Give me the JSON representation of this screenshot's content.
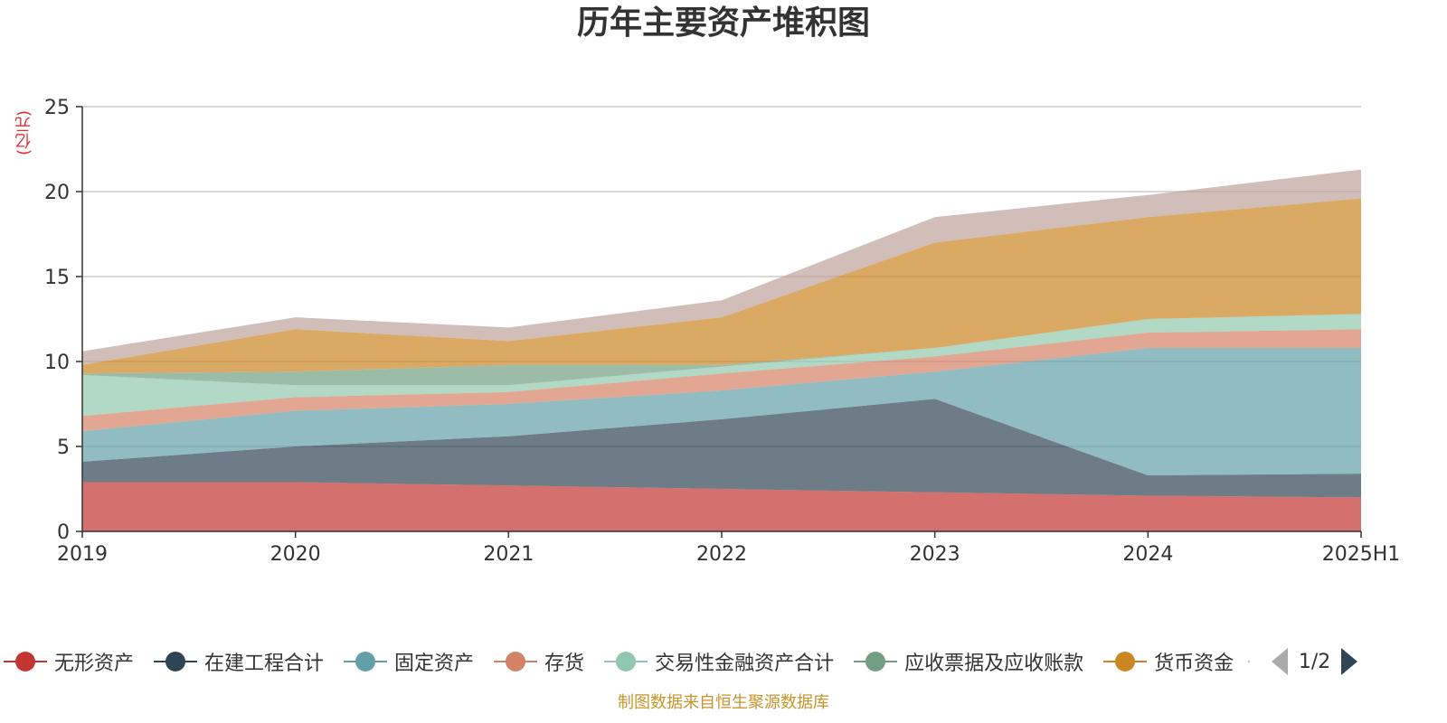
{
  "title": "历年主要资产堆积图",
  "unit_label": "(亿元)",
  "source_note": "制图数据来自恒生聚源数据库",
  "legend_pager": "1/2",
  "colors": {
    "wuxing": "#c23531",
    "zaijian": "#2f4554",
    "guding": "#61a0a8",
    "cunhuo": "#d48265",
    "jiaoyi": "#91c7ae",
    "yingshou": "#749f83",
    "huobi": "#ca8622",
    "other": "#bda29a"
  },
  "chart_data": {
    "type": "area",
    "stacked": true,
    "title": "历年主要资产堆积图",
    "ylabel": "(亿元)",
    "x": [
      "2019",
      "2020",
      "2021",
      "2022",
      "2023",
      "2024",
      "2025H1"
    ],
    "y_ticks": [
      "0",
      "5",
      "10",
      "15",
      "20",
      "25"
    ],
    "ylim": [
      0,
      25
    ],
    "grid": true,
    "legend_position": "bottom",
    "series": [
      {
        "name": "无形资产",
        "color": "#c23531",
        "values": [
          2.9,
          2.9,
          2.7,
          2.5,
          2.3,
          2.1,
          2.0
        ]
      },
      {
        "name": "在建工程合计",
        "color": "#2f4554",
        "values": [
          1.2,
          2.1,
          2.9,
          4.1,
          5.5,
          1.2,
          1.4
        ]
      },
      {
        "name": "固定资产",
        "color": "#61a0a8",
        "values": [
          1.8,
          2.1,
          1.9,
          1.7,
          1.6,
          7.5,
          7.4
        ]
      },
      {
        "name": "存货",
        "color": "#d48265",
        "values": [
          0.9,
          0.8,
          0.7,
          1.0,
          0.9,
          0.9,
          1.1
        ]
      },
      {
        "name": "交易性金融资产合计",
        "color": "#91c7ae",
        "values": [
          2.4,
          0.7,
          0.4,
          0.4,
          0.5,
          0.8,
          0.9
        ]
      },
      {
        "name": "应收票据及应收账款",
        "color": "#749f83",
        "values": [
          0.1,
          0.8,
          1.2,
          0.1,
          0.0,
          0.0,
          0.0
        ]
      },
      {
        "name": "货币资金",
        "color": "#ca8622",
        "values": [
          0.5,
          2.5,
          1.4,
          2.8,
          6.2,
          6.0,
          6.8
        ]
      },
      {
        "color": "#bda29a",
        "values": [
          0.8,
          0.7,
          0.8,
          1.0,
          1.5,
          1.3,
          1.7
        ]
      }
    ]
  }
}
